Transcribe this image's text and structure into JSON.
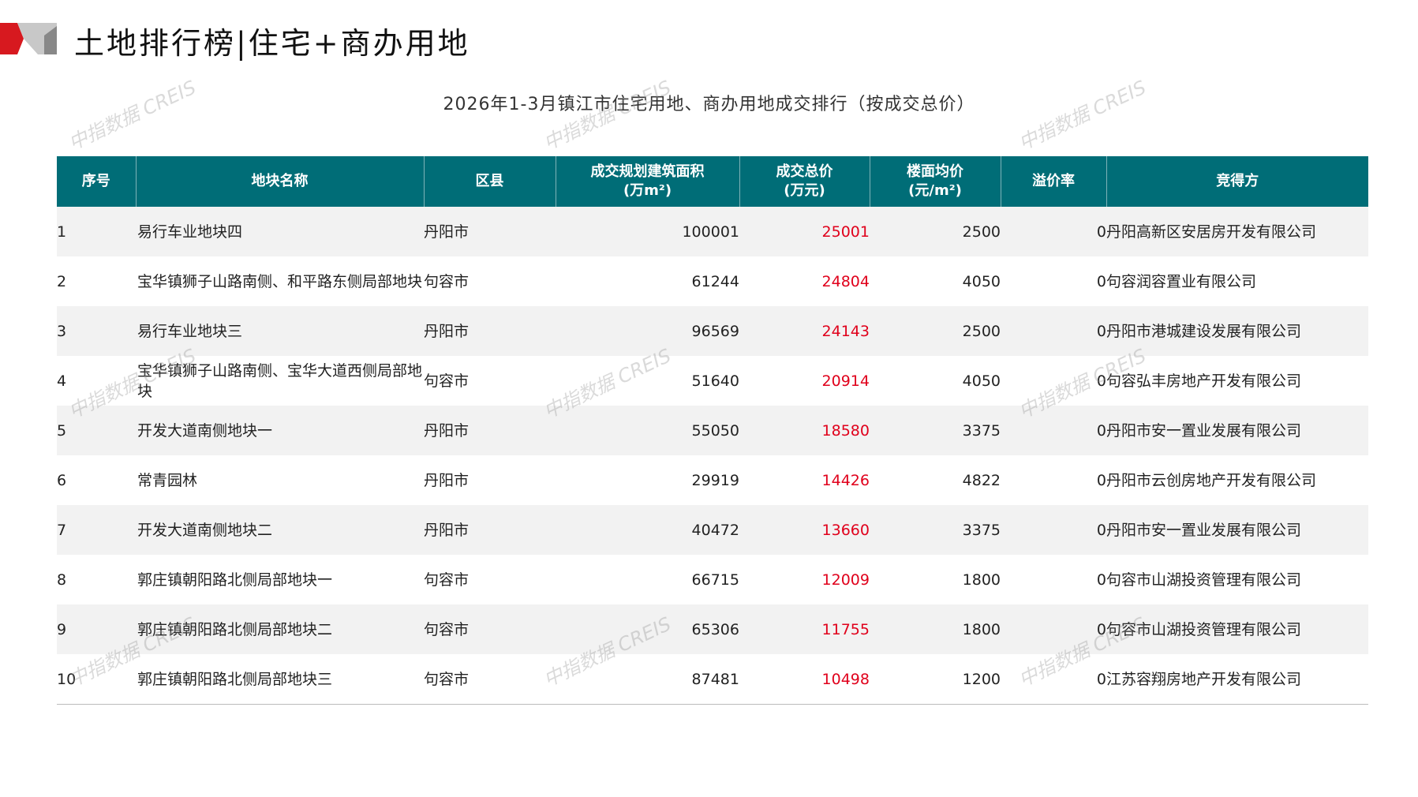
{
  "header": {
    "title": "土地排行榜|住宅+商办用地",
    "subtitle": "2026年1-3月镇江市住宅用地、商办用地成交排行（按成交总价）",
    "accent_color": "#006d77",
    "highlight_color": "#e0001b"
  },
  "watermark": "中指数据 CREIS",
  "table": {
    "columns": [
      "序号",
      "地块名称",
      "区县",
      "成交规划建筑面积\n(万m²)",
      "成交总价\n(万元)",
      "楼面均价\n(元/m²)",
      "溢价率",
      "竞得方"
    ],
    "rows": [
      {
        "rank": "1",
        "name": "易行车业地块四",
        "district": "丹阳市",
        "area": "100001",
        "total": "25001",
        "unit_price": "2500",
        "premium": "0",
        "buyer": "丹阳高新区安居房开发有限公司"
      },
      {
        "rank": "2",
        "name": "宝华镇狮子山路南侧、和平路东侧局部地块",
        "district": "句容市",
        "area": "61244",
        "total": "24804",
        "unit_price": "4050",
        "premium": "0",
        "buyer": "句容润容置业有限公司"
      },
      {
        "rank": "3",
        "name": "易行车业地块三",
        "district": "丹阳市",
        "area": "96569",
        "total": "24143",
        "unit_price": "2500",
        "premium": "0",
        "buyer": "丹阳市港城建设发展有限公司"
      },
      {
        "rank": "4",
        "name": "宝华镇狮子山路南侧、宝华大道西侧局部地块",
        "district": "句容市",
        "area": "51640",
        "total": "20914",
        "unit_price": "4050",
        "premium": "0",
        "buyer": "句容弘丰房地产开发有限公司"
      },
      {
        "rank": "5",
        "name": "开发大道南侧地块一",
        "district": "丹阳市",
        "area": "55050",
        "total": "18580",
        "unit_price": "3375",
        "premium": "0",
        "buyer": "丹阳市安一置业发展有限公司"
      },
      {
        "rank": "6",
        "name": "常青园林",
        "district": "丹阳市",
        "area": "29919",
        "total": "14426",
        "unit_price": "4822",
        "premium": "0",
        "buyer": "丹阳市云创房地产开发有限公司"
      },
      {
        "rank": "7",
        "name": "开发大道南侧地块二",
        "district": "丹阳市",
        "area": "40472",
        "total": "13660",
        "unit_price": "3375",
        "premium": "0",
        "buyer": "丹阳市安一置业发展有限公司"
      },
      {
        "rank": "8",
        "name": "郭庄镇朝阳路北侧局部地块一",
        "district": "句容市",
        "area": "66715",
        "total": "12009",
        "unit_price": "1800",
        "premium": "0",
        "buyer": "句容市山湖投资管理有限公司"
      },
      {
        "rank": "9",
        "name": "郭庄镇朝阳路北侧局部地块二",
        "district": "句容市",
        "area": "65306",
        "total": "11755",
        "unit_price": "1800",
        "premium": "0",
        "buyer": "句容市山湖投资管理有限公司"
      },
      {
        "rank": "10",
        "name": "郭庄镇朝阳路北侧局部地块三",
        "district": "句容市",
        "area": "87481",
        "total": "10498",
        "unit_price": "1200",
        "premium": "0",
        "buyer": "江苏容翔房地产开发有限公司"
      }
    ]
  }
}
